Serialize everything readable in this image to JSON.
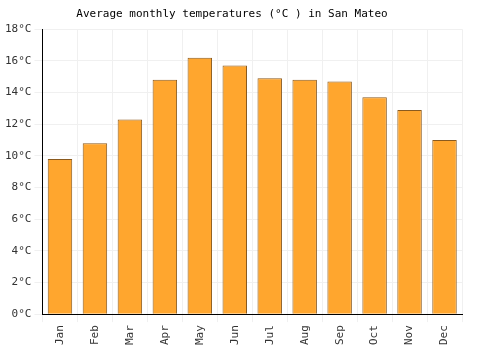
{
  "chart_data": {
    "type": "bar",
    "title": "Average monthly temperatures (°C ) in San Mateo",
    "categories": [
      "Jan",
      "Feb",
      "Mar",
      "Apr",
      "May",
      "Jun",
      "Jul",
      "Aug",
      "Sep",
      "Oct",
      "Nov",
      "Dec"
    ],
    "values": [
      9.8,
      10.8,
      12.3,
      14.8,
      16.2,
      15.7,
      14.9,
      14.8,
      14.7,
      13.7,
      12.9,
      11.0
    ],
    "color": "#ffa62e",
    "ylim": [
      0,
      18
    ],
    "yticks": [
      {
        "value": 0,
        "label": "0°C"
      },
      {
        "value": 2,
        "label": "2°C"
      },
      {
        "value": 4,
        "label": "4°C"
      },
      {
        "value": 6,
        "label": "6°C"
      },
      {
        "value": 8,
        "label": "8°C"
      },
      {
        "value": 10,
        "label": "10°C"
      },
      {
        "value": 12,
        "label": "12°C"
      },
      {
        "value": 14,
        "label": "14°C"
      },
      {
        "value": 16,
        "label": "16°C"
      },
      {
        "value": 18,
        "label": "18°C"
      }
    ],
    "grid": true
  }
}
